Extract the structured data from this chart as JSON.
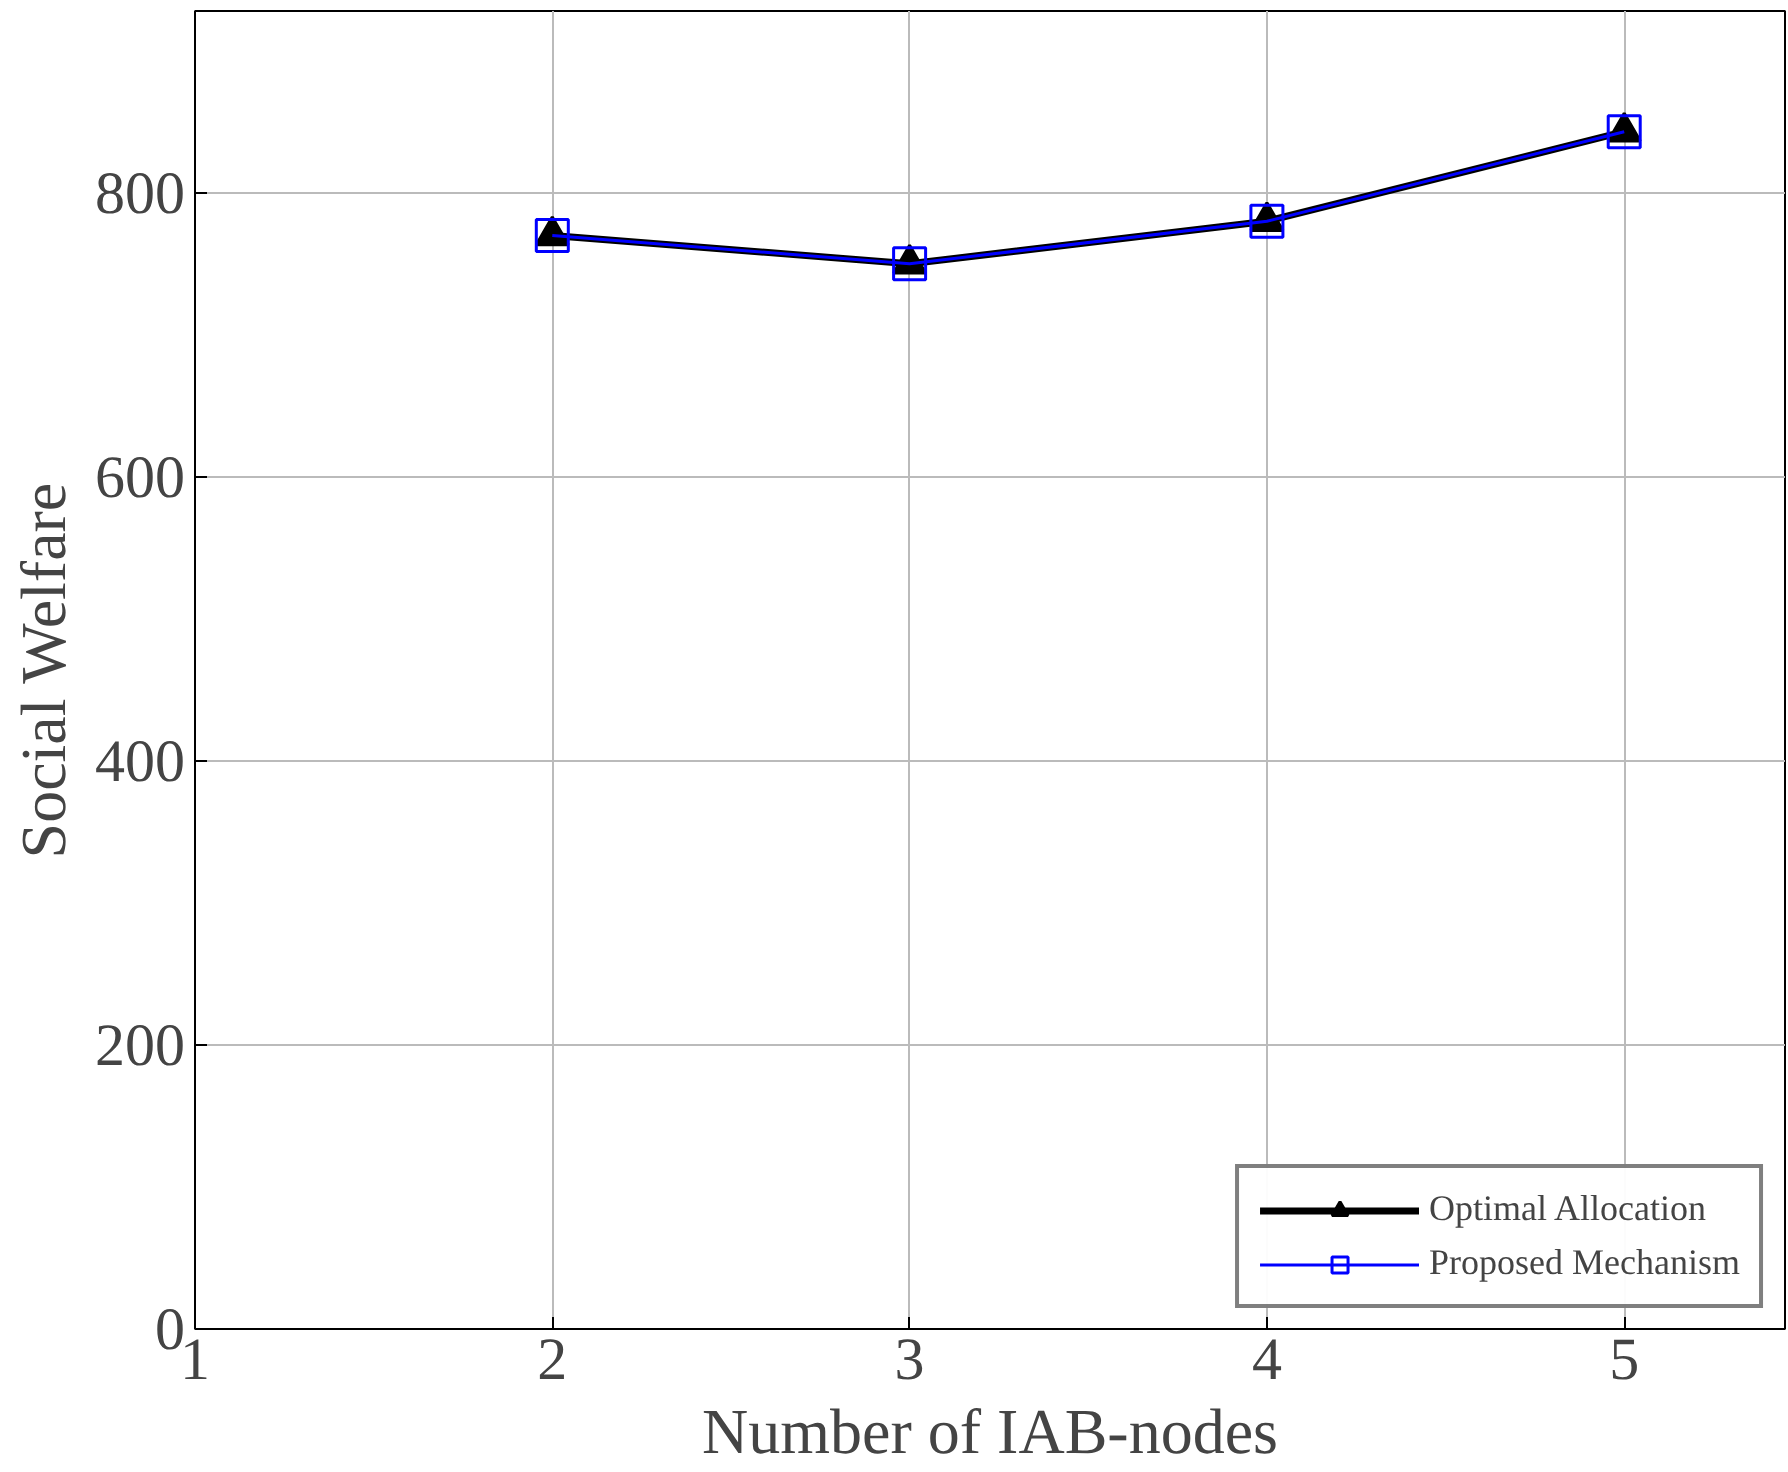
{
  "chart_data": {
    "type": "line",
    "xlabel": "Number of IAB-nodes",
    "ylabel": "Social Welfare",
    "x": [
      2,
      3,
      4,
      5
    ],
    "series": [
      {
        "name": "Optimal Allocation",
        "color": "#000000",
        "marker": "triangle",
        "values": [
          770,
          750,
          780,
          843
        ]
      },
      {
        "name": "Proposed Mechanism",
        "color": "#0000ff",
        "marker": "square",
        "values": [
          770,
          750,
          780,
          843
        ]
      }
    ],
    "xlim": [
      1,
      5.45
    ],
    "xticks": [
      1,
      2,
      3,
      4,
      5
    ],
    "ylim": [
      0,
      928
    ],
    "yticks": [
      0,
      200,
      400,
      600,
      800
    ],
    "grid": true,
    "legend": "bottom right",
    "line_style": "solid"
  }
}
